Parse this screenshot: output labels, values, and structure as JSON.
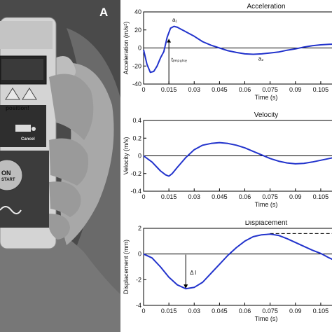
{
  "panel_label": "A",
  "device": {
    "screen_text": "position!",
    "cancel_label": "Cancel",
    "button_text_1": "ON",
    "button_text_2": "START"
  },
  "chart_data": [
    {
      "type": "line",
      "title": "Acceleration",
      "xlabel": "Time (s)",
      "ylabel": "Acceleration (m/s²)",
      "xlim": [
        0,
        0.115
      ],
      "ylim": [
        -40,
        40
      ],
      "xticks": [
        "0",
        "0.015",
        "0.03",
        "0.045",
        "0.06",
        "0.075",
        "0.09",
        "0.105"
      ],
      "yticks": [
        "-40",
        "-20",
        "0",
        "20",
        "40"
      ],
      "color": "#2233cc",
      "series": [
        {
          "x": [
            0,
            0.002,
            0.004,
            0.006,
            0.008,
            0.01,
            0.012,
            0.014,
            0.016,
            0.018,
            0.02,
            0.022,
            0.024,
            0.027,
            0.03,
            0.035,
            0.04,
            0.045,
            0.05,
            0.055,
            0.06,
            0.065,
            0.07,
            0.075,
            0.08,
            0.085,
            0.09,
            0.095,
            0.1,
            0.105,
            0.11,
            0.115
          ],
          "y": [
            -2,
            -18,
            -27,
            -26,
            -20,
            -11,
            -4,
            12,
            22,
            24,
            23,
            21,
            19,
            16,
            13,
            7,
            3,
            0,
            -3,
            -5,
            -6.5,
            -7,
            -6.5,
            -5.5,
            -4.5,
            -2.5,
            -1,
            1,
            2.5,
            3.5,
            4,
            4.5
          ]
        }
      ],
      "annotations": [
        {
          "text": "a₁",
          "x": 0.017,
          "y": 29
        },
        {
          "text": "a₂",
          "x": 0.068,
          "y": -14
        },
        {
          "text": "tᵢₘₚᵤₗₛₑ",
          "x": 0.0165,
          "y": -15
        }
      ],
      "marker_line": {
        "x": 0.015,
        "y_from": -40,
        "y_to": 10
      }
    },
    {
      "type": "line",
      "title": "Velocity",
      "xlabel": "Time (s)",
      "ylabel": "Velocity (m/s)",
      "xlim": [
        0,
        0.115
      ],
      "ylim": [
        -0.4,
        0.4
      ],
      "xticks": [
        "0",
        "0.015",
        "0.03",
        "0.045",
        "0.06",
        "0.075",
        "0.09",
        "0.105"
      ],
      "yticks": [
        "-0.4",
        "-0.2",
        "0",
        "0.2",
        "0.4"
      ],
      "color": "#2233cc",
      "series": [
        {
          "x": [
            0,
            0.005,
            0.01,
            0.013,
            0.015,
            0.017,
            0.02,
            0.025,
            0.03,
            0.035,
            0.04,
            0.045,
            0.05,
            0.055,
            0.06,
            0.065,
            0.07,
            0.075,
            0.08,
            0.085,
            0.09,
            0.095,
            0.1,
            0.105,
            0.11,
            0.115
          ],
          "y": [
            0,
            -0.07,
            -0.17,
            -0.215,
            -0.23,
            -0.2,
            -0.13,
            -0.02,
            0.07,
            0.12,
            0.14,
            0.15,
            0.14,
            0.12,
            0.09,
            0.05,
            0.01,
            -0.03,
            -0.06,
            -0.08,
            -0.09,
            -0.085,
            -0.07,
            -0.05,
            -0.03,
            -0.01
          ]
        }
      ]
    },
    {
      "type": "line",
      "title": "Displacement",
      "xlabel": "Time (s)",
      "ylabel": "Displacement (mm)",
      "xlim": [
        0,
        0.115
      ],
      "ylim": [
        -4,
        2
      ],
      "xticks": [
        "0",
        "0.015",
        "0.03",
        "0.045",
        "0.06",
        "0.075",
        "0.09",
        "0.105"
      ],
      "yticks": [
        "-4",
        "-2",
        "0",
        "2"
      ],
      "color": "#2233cc",
      "series": [
        {
          "x": [
            0,
            0.005,
            0.01,
            0.015,
            0.02,
            0.025,
            0.03,
            0.035,
            0.04,
            0.045,
            0.05,
            0.055,
            0.06,
            0.065,
            0.07,
            0.075,
            0.08,
            0.085,
            0.09,
            0.095,
            0.1,
            0.105,
            0.11,
            0.115
          ],
          "y": [
            0,
            -0.3,
            -1.0,
            -1.8,
            -2.4,
            -2.7,
            -2.6,
            -2.2,
            -1.5,
            -0.8,
            -0.1,
            0.5,
            1.0,
            1.35,
            1.5,
            1.55,
            1.45,
            1.2,
            0.9,
            0.6,
            0.3,
            0.05,
            -0.3,
            -0.6
          ]
        }
      ],
      "annotations": [
        {
          "text": "Δ l",
          "x": 0.0275,
          "y": -1.6
        }
      ],
      "arrow": {
        "x": 0.025,
        "y_from": -0.05,
        "y_to": -2.7
      },
      "dashed_line": {
        "x_from": 0.075,
        "x_to": 0.115,
        "y": 1.6
      }
    }
  ]
}
